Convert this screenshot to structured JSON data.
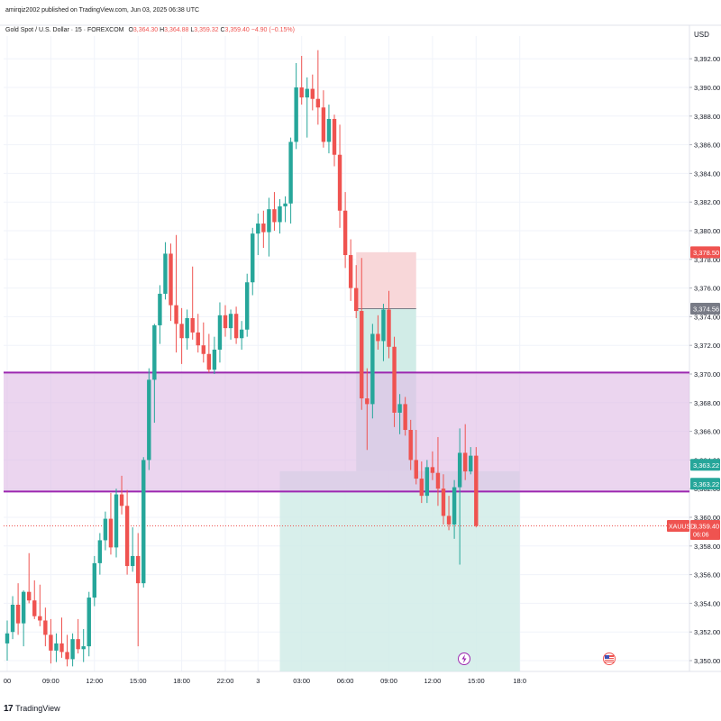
{
  "header": {
    "published_by": "amirqiz2002 published on TradingView.com, Jun 03, 2025 06:38 UTC",
    "symbol_title": "Gold Spot / U.S. Dollar · 15 · FOREXCOM",
    "ohlc": {
      "o_label": "O",
      "o": "3,364.30",
      "h_label": "H",
      "h": "3,364.88",
      "l_label": "L",
      "l": "3,359.32",
      "c_label": "C",
      "c": "3,359.40",
      "change": "−4.90 (−0.15%)"
    }
  },
  "price_axis": {
    "currency": "USD"
  },
  "footer": {
    "brand": "TradingView"
  },
  "colors": {
    "up": "#26a69a",
    "down": "#ef5350",
    "zone_fill": "#e1bee7",
    "zone_line": "#9c27b0",
    "stop_fill": "#f8d7d9",
    "target_fill": "#d1ece7",
    "label_gray": "#787b86",
    "label_red": "#ef5350",
    "label_green": "#26a69a"
  },
  "chart_data": {
    "type": "candlestick",
    "symbol": "XAUUSD",
    "timeframe": "15",
    "ylim": [
      3349.5,
      3393.5
    ],
    "yticks": [
      3350,
      3352,
      3354,
      3356,
      3358,
      3360,
      3362,
      3364,
      3366,
      3368,
      3370,
      3372,
      3374,
      3376,
      3378,
      3380,
      3382,
      3384,
      3386,
      3388,
      3390,
      3392
    ],
    "ytick_labels": [
      "3,350.00",
      "3,352.00",
      "3,354.00",
      "3,356.00",
      "3,358.00",
      "3,360.00",
      "3,362.00",
      "3,364.00",
      "3,366.00",
      "3,368.00",
      "3,370.00",
      "3,372.00",
      "3,374.00",
      "3,376.00",
      "3,378.00",
      "3,380.00",
      "3,382.00",
      "3,384.00",
      "3,386.00",
      "3,388.00",
      "3,390.00",
      "3,392.00"
    ],
    "xticks": [
      {
        "i": 0,
        "label": "00"
      },
      {
        "i": 8,
        "label": "09:00"
      },
      {
        "i": 16,
        "label": "12:00"
      },
      {
        "i": 24,
        "label": "15:00"
      },
      {
        "i": 32,
        "label": "18:00"
      },
      {
        "i": 40,
        "label": "22:00"
      },
      {
        "i": 46,
        "label": "3"
      },
      {
        "i": 54,
        "label": "03:00"
      },
      {
        "i": 62,
        "label": "06:00"
      },
      {
        "i": 70,
        "label": "09:00"
      },
      {
        "i": 78,
        "label": "12:00"
      },
      {
        "i": 86,
        "label": "15:00"
      },
      {
        "i": 94,
        "label": "18:0"
      }
    ],
    "candles": [
      [
        3351.2,
        3352.8,
        3350.0,
        3351.9
      ],
      [
        3352.0,
        3354.5,
        3351.5,
        3353.9
      ],
      [
        3353.9,
        3355.4,
        3351.8,
        3352.6
      ],
      [
        3352.6,
        3354.9,
        3351.0,
        3354.8
      ],
      [
        3354.8,
        3357.5,
        3354.0,
        3354.2
      ],
      [
        3354.2,
        3355.6,
        3352.9,
        3353.1
      ],
      [
        3353.1,
        3355.3,
        3352.4,
        3352.8
      ],
      [
        3352.8,
        3353.7,
        3351.0,
        3351.8
      ],
      [
        3351.8,
        3352.9,
        3349.8,
        3350.7
      ],
      [
        3350.7,
        3351.9,
        3349.9,
        3351.2
      ],
      [
        3351.2,
        3353.0,
        3350.2,
        3350.6
      ],
      [
        3350.6,
        3351.8,
        3349.6,
        3350.1
      ],
      [
        3350.1,
        3351.9,
        3349.6,
        3351.5
      ],
      [
        3351.5,
        3352.9,
        3350.5,
        3350.8
      ],
      [
        3350.8,
        3352.2,
        3349.9,
        3351.0
      ],
      [
        3351.0,
        3354.8,
        3350.3,
        3354.4
      ],
      [
        3354.4,
        3357.3,
        3353.8,
        3356.8
      ],
      [
        3356.8,
        3358.9,
        3356.0,
        3358.4
      ],
      [
        3358.4,
        3360.4,
        3357.7,
        3359.9
      ],
      [
        3359.9,
        3361.7,
        3357.4,
        3357.9
      ],
      [
        3357.9,
        3362.0,
        3357.2,
        3361.6
      ],
      [
        3361.6,
        3362.9,
        3360.2,
        3360.8
      ],
      [
        3360.8,
        3361.9,
        3356.0,
        3356.6
      ],
      [
        3356.6,
        3359.3,
        3356.2,
        3357.3
      ],
      [
        3357.3,
        3358.9,
        3351.0,
        3355.4
      ],
      [
        3355.4,
        3364.2,
        3355.1,
        3364.0
      ],
      [
        3364.0,
        3370.4,
        3363.3,
        3369.6
      ],
      [
        3369.6,
        3373.5,
        3366.6,
        3373.4
      ],
      [
        3373.4,
        3376.2,
        3372.1,
        3375.6
      ],
      [
        3375.6,
        3379.2,
        3375.2,
        3378.4
      ],
      [
        3378.4,
        3379.1,
        3373.7,
        3374.8
      ],
      [
        3374.8,
        3379.7,
        3371.5,
        3373.5
      ],
      [
        3373.5,
        3374.6,
        3370.7,
        3372.5
      ],
      [
        3372.5,
        3374.5,
        3371.7,
        3373.9
      ],
      [
        3373.9,
        3377.5,
        3372.4,
        3372.9
      ],
      [
        3372.9,
        3374.2,
        3371.5,
        3372.0
      ],
      [
        3372.0,
        3373.6,
        3370.8,
        3371.4
      ],
      [
        3371.4,
        3372.8,
        3370.1,
        3370.3
      ],
      [
        3370.3,
        3372.6,
        3370.0,
        3371.7
      ],
      [
        3371.7,
        3375.0,
        3370.8,
        3374.1
      ],
      [
        3374.1,
        3374.8,
        3372.6,
        3373.2
      ],
      [
        3373.2,
        3374.5,
        3372.4,
        3374.2
      ],
      [
        3374.2,
        3374.7,
        3372.1,
        3372.5
      ],
      [
        3372.5,
        3373.7,
        3371.7,
        3373.1
      ],
      [
        3373.1,
        3377.0,
        3372.6,
        3376.4
      ],
      [
        3376.4,
        3380.2,
        3375.5,
        3379.8
      ],
      [
        3379.8,
        3381.2,
        3378.3,
        3380.5
      ],
      [
        3380.5,
        3381.4,
        3378.8,
        3379.9
      ],
      [
        3379.9,
        3382.3,
        3378.2,
        3381.5
      ],
      [
        3381.5,
        3382.7,
        3380.0,
        3380.6
      ],
      [
        3380.6,
        3382.2,
        3379.8,
        3381.7
      ],
      [
        3381.7,
        3382.4,
        3380.6,
        3381.9
      ],
      [
        3381.9,
        3386.5,
        3380.5,
        3386.2
      ],
      [
        3386.2,
        3391.7,
        3385.7,
        3390.0
      ],
      [
        3390.0,
        3392.2,
        3388.8,
        3389.3
      ],
      [
        3389.3,
        3390.7,
        3386.5,
        3389.9
      ],
      [
        3389.9,
        3390.9,
        3388.4,
        3389.2
      ],
      [
        3389.2,
        3392.6,
        3387.4,
        3388.6
      ],
      [
        3388.6,
        3389.8,
        3385.8,
        3386.2
      ],
      [
        3386.2,
        3388.8,
        3385.4,
        3387.8
      ],
      [
        3387.8,
        3388.1,
        3384.5,
        3385.3
      ],
      [
        3385.3,
        3387.4,
        3380.2,
        3381.4
      ],
      [
        3381.4,
        3382.7,
        3377.4,
        3378.3
      ],
      [
        3378.3,
        3379.4,
        3375.1,
        3376.0
      ],
      [
        3376.0,
        3377.6,
        3373.9,
        3374.4
      ],
      [
        3374.4,
        3378.1,
        3367.5,
        3368.3
      ],
      [
        3368.3,
        3370.4,
        3364.7,
        3367.9
      ],
      [
        3367.9,
        3373.5,
        3366.9,
        3372.8
      ],
      [
        3372.8,
        3374.1,
        3371.7,
        3372.3
      ],
      [
        3372.3,
        3374.9,
        3370.9,
        3374.5
      ],
      [
        3374.5,
        3375.8,
        3371.1,
        3371.9
      ],
      [
        3371.9,
        3372.6,
        3366.3,
        3367.3
      ],
      [
        3367.3,
        3368.6,
        3365.8,
        3367.9
      ],
      [
        3367.9,
        3368.4,
        3365.7,
        3366.1
      ],
      [
        3366.1,
        3366.8,
        3363.3,
        3364.0
      ],
      [
        3364.0,
        3366.1,
        3362.3,
        3362.7
      ],
      [
        3362.7,
        3363.9,
        3361.0,
        3361.5
      ],
      [
        3361.5,
        3364.0,
        3361.0,
        3363.5
      ],
      [
        3363.5,
        3364.6,
        3362.6,
        3363.1
      ],
      [
        3363.1,
        3365.6,
        3360.8,
        3362.0
      ],
      [
        3362.0,
        3363.0,
        3359.5,
        3360.1
      ],
      [
        3360.1,
        3361.5,
        3359.1,
        3359.5
      ],
      [
        3359.5,
        3362.6,
        3358.5,
        3362.1
      ],
      [
        3362.1,
        3366.2,
        3356.7,
        3364.5
      ],
      [
        3364.5,
        3366.5,
        3362.6,
        3363.2
      ],
      [
        3363.2,
        3364.9,
        3363.0,
        3364.3
      ],
      [
        3364.3,
        3364.9,
        3359.3,
        3359.4
      ]
    ],
    "levels": {
      "resistance_band": {
        "top": 3370.1,
        "bottom": 3361.8
      },
      "dotted_price_line": 3359.4
    },
    "position_tool": {
      "stop_zone": {
        "top": 3378.5,
        "bottom": 3374.56,
        "from_i": 64,
        "to_i": 75
      },
      "target_zone": {
        "top": 3374.56,
        "bottom": 3363.22,
        "from_i": 64,
        "to_i": 75
      },
      "entry_zone": {
        "top": 3363.22,
        "bottom": 3349.5,
        "from_i": 50,
        "to_i": 94
      }
    },
    "price_labels": [
      {
        "price": 3378.5,
        "text": "3,378.50",
        "color_key": "label_red"
      },
      {
        "price": 3374.56,
        "text": "3,374.56",
        "color_key": "label_gray"
      },
      {
        "price": 3363.22,
        "text": "3,363.22",
        "color_key": "label_green"
      },
      {
        "price": 3363.22,
        "text": "3,363.22",
        "color_key": "label_green",
        "offset": 1
      },
      {
        "price": 3359.4,
        "text": "3,359.40",
        "sub": "06:06",
        "tag": "XAUUSD",
        "color_key": "label_red"
      }
    ]
  }
}
